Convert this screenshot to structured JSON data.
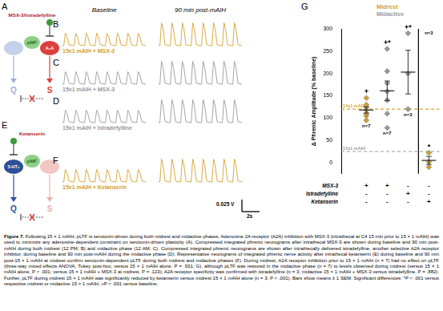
{
  "panels": {
    "A": {
      "letter": "A",
      "drug": "MSX-3/Istradefylline",
      "receptor": "A₂A",
      "center": "pMF",
      "left_pathway": "Q",
      "right_pathway": "S"
    },
    "E": {
      "letter": "E",
      "drug": "Ketanserin",
      "receptor": "5-HT₂",
      "center": "pMF",
      "left_pathway": "Q",
      "right_pathway": "S"
    },
    "traces": {
      "column_titles": [
        "Baseline",
        "90 min post-mAIH"
      ],
      "rows": [
        {
          "letter": "B",
          "label": "15x1 mAIH + MSX-3",
          "color": "#d4a12a"
        },
        {
          "letter": "C",
          "label": "15x1 mAIH + MSX-3",
          "color": "#9a9a9a"
        },
        {
          "letter": "D",
          "label": "15x1 mAIH + Istradefylline",
          "color": "#9a9a9a"
        },
        {
          "letter": "F",
          "label": "15x1 mAIH + Ketanserin",
          "color": "#d4a12a"
        }
      ],
      "scale_bar": {
        "voltage": "0.025 V",
        "time": "2s"
      }
    }
  },
  "chart_data": {
    "type": "scatter",
    "letter": "G",
    "y_label": "Δ Phrenic Amplitude (% baseline)",
    "categories": [
      null,
      null,
      null,
      null
    ],
    "ylim": [
      -25,
      300
    ],
    "yticks": [
      0,
      50,
      100,
      150,
      200,
      250,
      300
    ],
    "grid": false,
    "legend": "upper right",
    "series": [
      {
        "name": "Midrest",
        "color": "#d4a12a",
        "marker": "diamond",
        "values": [
          [
            95,
            105,
            110,
            118,
            125,
            130,
            145
          ],
          null,
          null,
          [
            -10,
            2,
            22
          ]
        ],
        "means": [
          118,
          null,
          null,
          5
        ],
        "sem": [
          7,
          null,
          null,
          9
        ]
      },
      {
        "name": "Midactive",
        "color": "#9a9a9a",
        "marker": "diamond",
        "values": [
          null,
          [
            78,
            110,
            140,
            160,
            178,
            205,
            255
          ],
          [
            120,
            200,
            290
          ],
          null
        ],
        "means": [
          null,
          161,
          203,
          null
        ],
        "sem": [
          null,
          22,
          49,
          null
        ]
      }
    ],
    "n_labels": [
      "n=7",
      "n=7",
      "n=3",
      "n=3"
    ],
    "significance": [
      "+",
      "+*",
      "+*",
      "*"
    ],
    "reference_lines": [
      {
        "value": 120,
        "label": "15x1 mAIH",
        "color": "#d4a12a"
      },
      {
        "value": 25,
        "label": "15x1 mAIH",
        "color": "#9a9a9a"
      }
    ],
    "treatments": [
      {
        "name": "MSX-3",
        "marks": [
          "+",
          "+",
          "-",
          "-"
        ]
      },
      {
        "name": "Istradefylline",
        "marks": [
          "-",
          "-",
          "+",
          "-"
        ]
      },
      {
        "name": "Ketanserin",
        "marks": [
          "-",
          "-",
          "-",
          "+"
        ]
      }
    ]
  },
  "caption": {
    "label": "Figure 7.",
    "text": "Following 15 × 1 mAIH, pLTF is serotonin-driven during both midrest and midactive phases. Adenosine 2A receptor (A2A) inhibition with MSX-3 (intrathecal at C4 15 min prior to 15 × 1 mAIH) was used to minimize any adenosine-dependent constraint on serotonin-driven plasticity (A). Compressed integrated phrenic neurograms after intrathecal MSX-3 are shown during baseline and 90 min post-mAIH during both midrest (12 PM; B) and midactive phase (12 AM; C). Compressed integrated phrenic neurograms are shown after intrathecally delivered istradefylline, another selective A2A receptor inhibitor, during baseline and 90 min post-mAIH during the midactive phase (D). Representative neurograms of integrated phrenic nerve activity after intrathecal ketanserin (E) during baseline and 90 min post-15 × 1 mAIH at midrest confirm serotonin-dependent pLTF during both midrest and midactive phases (F). During midrest, A2A receptor inhibition prior to 15 × 1 mAIH (n = 7) had no effect on pLTF (three-way mixed effects ANOVA, Tukey post-hoc; versus 15 × 1 mAIH alone, P = .931; G), although pLTF was restored in the midactive phase (n = 7) to levels observed during midrest (versus 15 × 1 mAIH alone, P < .001; versus 15 × 1 mAIH + MSX-3 at midrest, P = .123); A2A receptor specificity was confirmed with istradefylline (n = 3; midactive 15 × 1 mAIH + MSX-3 versus istradefylline, P = .882). Further, pLTF during midrest 15 × 1 mAIH was significantly reduced by ketanserin versus midrest 15 × 1 mAIH alone (n = 3; P < .001). Bars show means ± 1 SEM; Significant differences: *P < .001 versus respective midrest or midactive 15 × 1 mAIH; +P < .001 versus baseline."
  }
}
